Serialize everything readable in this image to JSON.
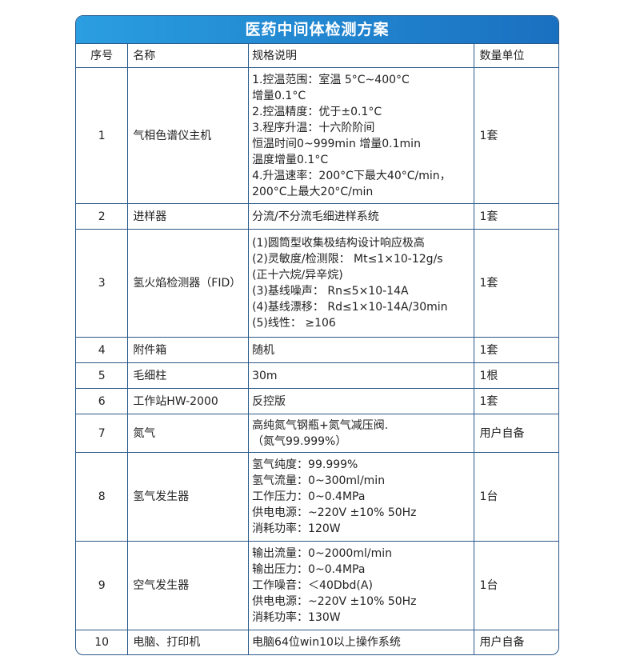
{
  "title": "医药中间体检测方案",
  "headers": [
    "序号",
    "名称",
    "规格说明",
    "数量单位"
  ],
  "rows": [
    {
      "no": "1",
      "name": "气相色谱仪主机",
      "spec": [
        "1.控温范围：室温 5°C~400°C",
        "增量0.1°C",
        "2.控温精度：优于±0.1°C",
        "3.程序升温：十六阶阶间",
        "恒温时间0~999min 增量0.1min",
        "温度增量0.1°C",
        "4.升温速率：200°C下最大40°C/min，",
        "200°C上最大20°C/min"
      ],
      "qty": "1套"
    },
    {
      "no": "2",
      "name": "进样器",
      "spec": [
        "分流/不分流毛细进样系统"
      ],
      "qty": "1套"
    },
    {
      "no": "3",
      "name": "氢火焰检测器（FID）",
      "spec": [
        "(1)圆筒型收集极结构设计响应极高",
        "(2)灵敏度/检测限： Mt≤1×10-12g/s",
        "(正十六烷/异辛烷)",
        "(3)基线噪声： Rn≤5×10-14A",
        "(4)基线漂移： Rd≤1×10-14A/30min",
        "(5)线性： ≥106"
      ],
      "qty": "1套"
    },
    {
      "no": "4",
      "name": "附件箱",
      "spec": [
        "随机"
      ],
      "qty": "1套"
    },
    {
      "no": "5",
      "name": "毛细柱",
      "spec": [
        "30m"
      ],
      "qty": "1根"
    },
    {
      "no": "6",
      "name": "工作站HW-2000",
      "spec": [
        "反控版"
      ],
      "qty": "1套"
    },
    {
      "no": "7",
      "name": "氮气",
      "spec": [
        "高纯氮气钢瓶+氮气减压阀.",
        "（氮气99.999%）"
      ],
      "qty": "用户自备"
    },
    {
      "no": "8",
      "name": "氢气发生器",
      "spec": [
        "氢气纯度：99.999%",
        "氢气流量：0~300ml/min",
        "工作压力：0~0.4MPa",
        "供电电源：~220V ±10% 50Hz",
        "消耗功率：120W"
      ],
      "qty": "1台"
    },
    {
      "no": "9",
      "name": "空气发生器",
      "spec": [
        "输出流量：0~2000ml/min",
        "输出压力：0~0.4MPa",
        "工作噪音：＜40Dbd(A)",
        "供电电源：~220V ±10% 50Hz",
        "消耗功率：130W"
      ],
      "qty": "1台"
    },
    {
      "no": "10",
      "name": "电脑、打印机",
      "spec": [
        "电脑64位win10以上操作系统"
      ],
      "qty": "用户自备"
    }
  ]
}
